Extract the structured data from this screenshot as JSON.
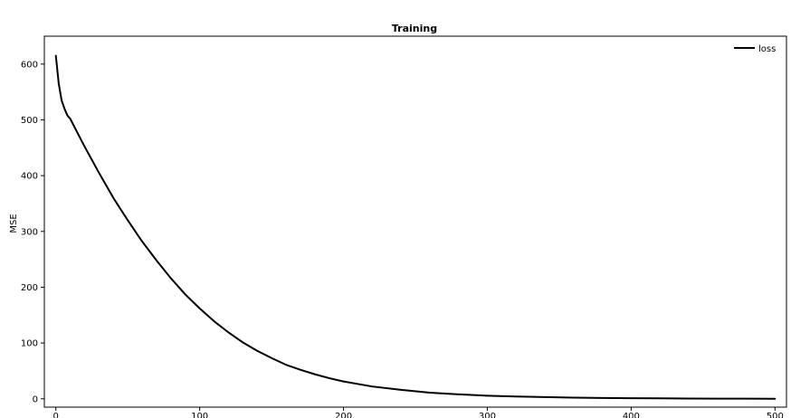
{
  "chart_data": {
    "type": "line",
    "title": "Training",
    "xlabel": "",
    "ylabel": "MSE",
    "xlim": [
      -8,
      508
    ],
    "ylim": [
      -15,
      650
    ],
    "xticks": [
      0,
      100,
      200,
      300,
      400,
      500
    ],
    "yticks": [
      0,
      100,
      200,
      300,
      400,
      500,
      600
    ],
    "grid": false,
    "legend_position": "top-right",
    "series": [
      {
        "name": "loss",
        "color": "#000000",
        "x": [
          0,
          2,
          4,
          6,
          8,
          10,
          15,
          20,
          30,
          40,
          50,
          60,
          70,
          80,
          90,
          100,
          110,
          120,
          130,
          140,
          150,
          160,
          170,
          180,
          190,
          200,
          220,
          240,
          260,
          280,
          300,
          320,
          340,
          360,
          380,
          400,
          420,
          440,
          460,
          480,
          500
        ],
        "y": [
          615,
          565,
          535,
          520,
          508,
          502,
          477,
          452,
          405,
          360,
          320,
          282,
          248,
          216,
          187,
          162,
          139,
          119,
          101,
          86,
          73,
          61,
          52,
          44,
          37,
          31,
          22,
          16,
          11,
          8,
          5.5,
          4,
          3,
          2,
          1.5,
          1,
          0.8,
          0.5,
          0.3,
          0.2,
          0.1
        ]
      }
    ]
  }
}
